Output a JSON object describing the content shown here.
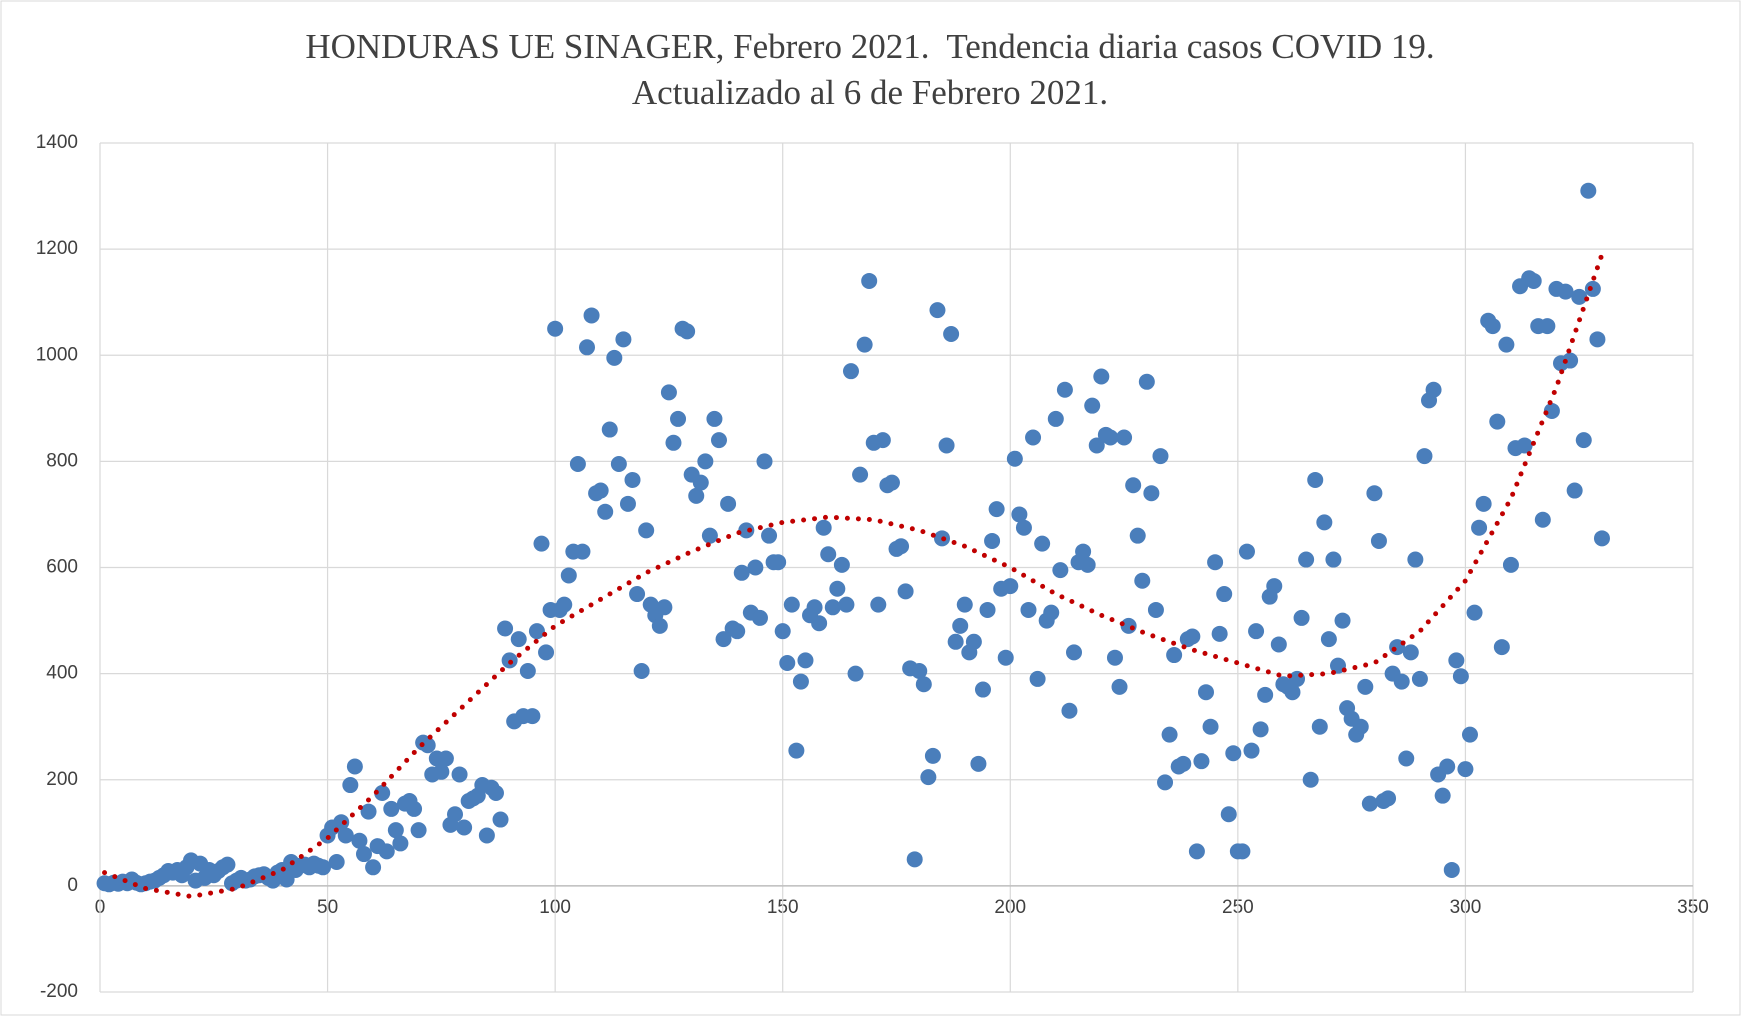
{
  "chart_data": {
    "type": "scatter",
    "title": "HONDURAS UE SINAGER, Febrero 2021.  Tendencia diaria casos COVID 19.",
    "subtitle": "Actualizado al 6 de Febrero 2021.",
    "xlim": [
      0,
      350
    ],
    "xticks": [
      0,
      50,
      100,
      150,
      200,
      250,
      300,
      350
    ],
    "ylim": [
      -200,
      1400
    ],
    "yticks": [
      -200,
      0,
      200,
      400,
      600,
      800,
      1000,
      1200,
      1400
    ],
    "grid": true,
    "series": [
      {
        "color": "#4a7ebb",
        "x": [
          1,
          2,
          3,
          4,
          5,
          6,
          7,
          8,
          9,
          10,
          11,
          12,
          13,
          14,
          15,
          16,
          17,
          18,
          19,
          20,
          21,
          22,
          23,
          24,
          25,
          26,
          27,
          28,
          29,
          30,
          31,
          32,
          33,
          34,
          35,
          36,
          37,
          38,
          39,
          40,
          41,
          42,
          43,
          44,
          45,
          46,
          47,
          48,
          49,
          50,
          51,
          52,
          53,
          54,
          55,
          56,
          57,
          58,
          59,
          60,
          61,
          62,
          63,
          64,
          65,
          66,
          67,
          68,
          69,
          70,
          71,
          72,
          73,
          74,
          75,
          76,
          77,
          78,
          79,
          80,
          81,
          82,
          83,
          84,
          85,
          86,
          87,
          88,
          89,
          90,
          91,
          92,
          93,
          94,
          95,
          96,
          97,
          98,
          99,
          100,
          101,
          102,
          103,
          104,
          105,
          106,
          107,
          108,
          109,
          110,
          111,
          112,
          113,
          114,
          115,
          116,
          117,
          118,
          119,
          120,
          121,
          122,
          123,
          124,
          125,
          126,
          127,
          128,
          129,
          130,
          131,
          132,
          133,
          134,
          135,
          136,
          137,
          138,
          139,
          140,
          141,
          142,
          143,
          144,
          145,
          146,
          147,
          148,
          149,
          150,
          151,
          152,
          153,
          154,
          155,
          156,
          157,
          158,
          159,
          160,
          161,
          162,
          163,
          164,
          165,
          166,
          167,
          168,
          169,
          170,
          171,
          172,
          173,
          174,
          175,
          176,
          177,
          178,
          179,
          180,
          181,
          182,
          183,
          184,
          185,
          186,
          187,
          188,
          189,
          190,
          191,
          192,
          193,
          194,
          195,
          196,
          197,
          198,
          199,
          200,
          201,
          202,
          203,
          204,
          205,
          206,
          207,
          208,
          209,
          210,
          211,
          212,
          213,
          214,
          215,
          216,
          217,
          218,
          219,
          220,
          221,
          222,
          223,
          224,
          225,
          226,
          227,
          228,
          229,
          230,
          231,
          232,
          233,
          234,
          235,
          236,
          237,
          238,
          239,
          240,
          241,
          242,
          243,
          244,
          245,
          246,
          247,
          248,
          249,
          250,
          251,
          252,
          253,
          254,
          255,
          256,
          257,
          258,
          259,
          260,
          261,
          262,
          263,
          264,
          265,
          266,
          267,
          268,
          269,
          270,
          271,
          272,
          273,
          274,
          275,
          276,
          277,
          278,
          279,
          280,
          281,
          282,
          283,
          284,
          285,
          286,
          287,
          288,
          289,
          290,
          291,
          292,
          293,
          294,
          295,
          296,
          297,
          298,
          299,
          300,
          301,
          302,
          303,
          304,
          305,
          306,
          307,
          308,
          309,
          310,
          311,
          312,
          313,
          314,
          315,
          316,
          317,
          318,
          319,
          320,
          321,
          322,
          323,
          324,
          325,
          326,
          327,
          328,
          329,
          330
        ],
        "values": [
          5,
          3,
          6,
          4,
          8,
          5,
          12,
          6,
          3,
          5,
          8,
          10,
          15,
          20,
          28,
          25,
          30,
          20,
          35,
          48,
          10,
          42,
          15,
          30,
          20,
          28,
          35,
          40,
          5,
          10,
          15,
          10,
          12,
          18,
          20,
          22,
          15,
          10,
          25,
          30,
          12,
          45,
          30,
          38,
          40,
          35,
          42,
          38,
          35,
          95,
          110,
          45,
          120,
          95,
          190,
          225,
          85,
          60,
          140,
          35,
          75,
          175,
          65,
          145,
          105,
          80,
          155,
          160,
          145,
          105,
          270,
          265,
          210,
          240,
          215,
          240,
          115,
          135,
          210,
          110,
          160,
          165,
          170,
          190,
          95,
          185,
          175,
          125,
          485,
          425,
          310,
          465,
          320,
          405,
          320,
          480,
          645,
          440,
          520,
          1050,
          520,
          530,
          585,
          630,
          795,
          630,
          1015,
          1075,
          740,
          745,
          705,
          860,
          995,
          795,
          1030,
          720,
          765,
          550,
          405,
          670,
          530,
          510,
          490,
          525,
          930,
          835,
          880,
          1050,
          1045,
          775,
          735,
          760,
          800,
          660,
          880,
          840,
          465,
          720,
          485,
          480,
          590,
          670,
          515,
          600,
          505,
          800,
          660,
          610,
          610,
          480,
          420,
          530,
          255,
          385,
          425,
          510,
          525,
          495,
          675,
          625,
          525,
          560,
          605,
          530,
          970,
          400,
          775,
          1020,
          1140,
          835,
          530,
          840,
          755,
          760,
          635,
          640,
          555,
          410,
          50,
          405,
          380,
          205,
          245,
          1085,
          655,
          830,
          1040,
          460,
          490,
          530,
          440,
          460,
          230,
          370,
          520,
          650,
          710,
          560,
          430,
          565,
          805,
          700,
          675,
          520,
          845,
          390,
          645,
          500,
          515,
          880,
          595,
          935,
          330,
          440,
          610,
          630,
          605,
          905,
          830,
          960,
          850,
          845,
          430,
          375,
          845,
          490,
          755,
          660,
          575,
          950,
          740,
          520,
          810,
          195,
          285,
          435,
          225,
          230,
          465,
          470,
          65,
          235,
          365,
          300,
          610,
          475,
          550,
          135,
          250,
          65,
          65,
          630,
          255,
          480,
          295,
          360,
          545,
          565,
          455,
          380,
          375,
          365,
          390,
          505,
          615,
          200,
          765,
          300,
          685,
          465,
          615,
          415,
          500,
          335,
          315,
          285,
          300,
          375,
          155,
          740,
          650,
          160,
          165,
          400,
          450,
          385,
          240,
          440,
          615,
          390,
          810,
          915,
          935,
          210,
          170,
          225,
          30,
          425,
          395,
          220,
          285,
          515,
          675,
          720,
          1065,
          1055,
          875,
          450,
          1020,
          605,
          825,
          1130,
          830,
          1145,
          1140,
          1055,
          690,
          1055,
          895,
          1125,
          985,
          1120,
          990,
          745,
          1110,
          840,
          1310,
          1125,
          1030,
          655
        ]
      }
    ],
    "trend": {
      "color": "#c00000",
      "x": [
        1,
        10,
        20,
        30,
        40,
        50,
        60,
        70,
        80,
        90,
        100,
        110,
        120,
        130,
        140,
        150,
        160,
        170,
        180,
        190,
        200,
        210,
        220,
        230,
        240,
        250,
        260,
        270,
        280,
        290,
        300,
        310,
        320,
        330
      ],
      "values": [
        25,
        -5,
        -20,
        -5,
        30,
        90,
        170,
        260,
        340,
        420,
        490,
        540,
        590,
        630,
        665,
        685,
        695,
        690,
        670,
        640,
        600,
        550,
        510,
        475,
        445,
        420,
        395,
        400,
        420,
        480,
        575,
        730,
        940,
        1190
      ]
    }
  }
}
